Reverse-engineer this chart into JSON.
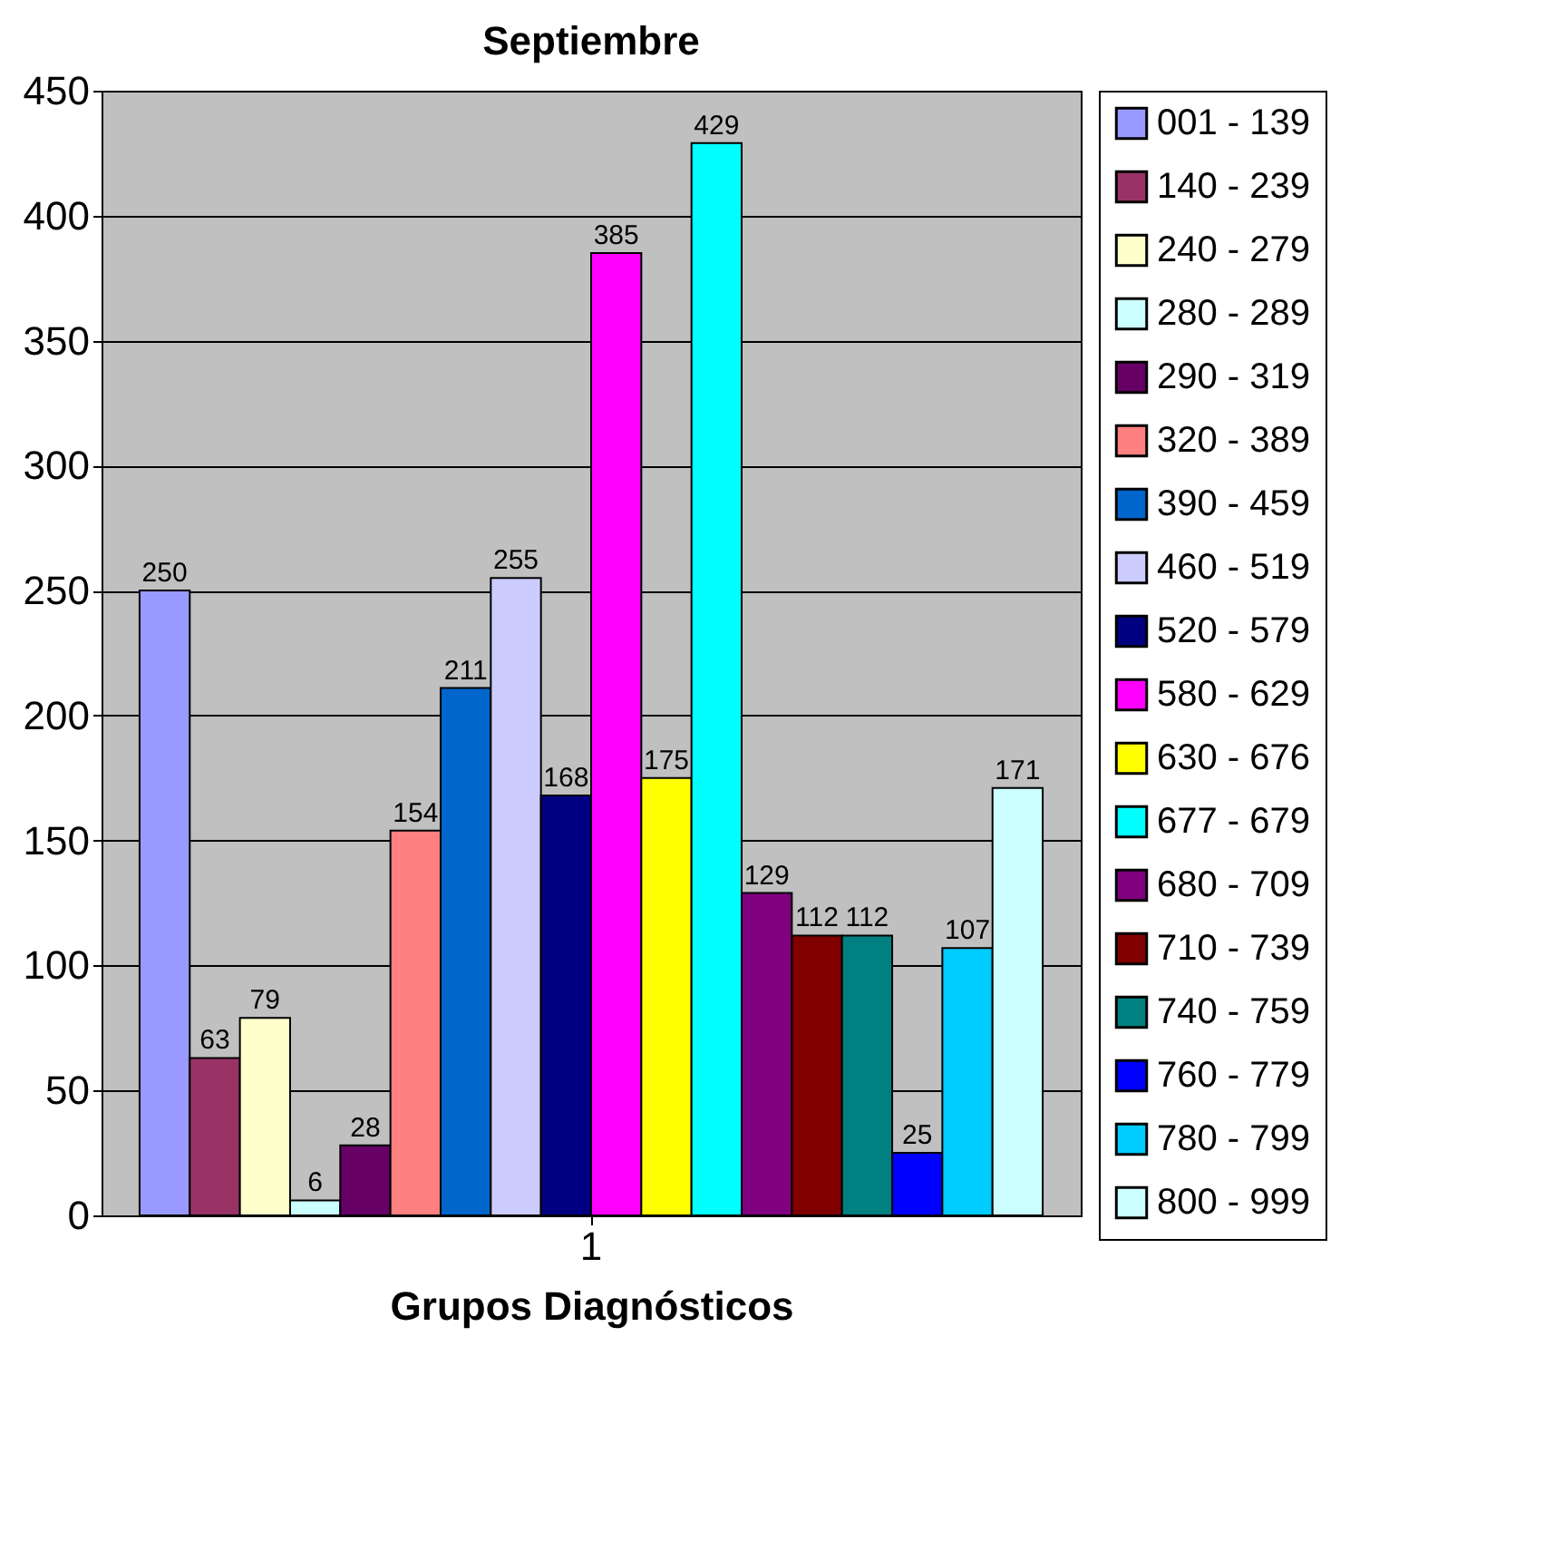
{
  "chart_data": {
    "type": "bar",
    "title": "Septiembre",
    "xlabel": "Grupos Diagnósticos",
    "categories": [
      "1"
    ],
    "series": [
      {
        "name": "001 - 139",
        "color": "#9999ff",
        "values": [
          250
        ]
      },
      {
        "name": "140 - 239",
        "color": "#993366",
        "values": [
          63
        ]
      },
      {
        "name": "240 - 279",
        "color": "#ffffcc",
        "values": [
          79
        ]
      },
      {
        "name": "280 - 289",
        "color": "#ccffff",
        "values": [
          6
        ]
      },
      {
        "name": "290 - 319",
        "color": "#660066",
        "values": [
          28
        ]
      },
      {
        "name": "320 - 389",
        "color": "#ff8080",
        "values": [
          154
        ]
      },
      {
        "name": "390 - 459",
        "color": "#0066cc",
        "values": [
          211
        ]
      },
      {
        "name": "460 - 519",
        "color": "#ccccff",
        "values": [
          255
        ]
      },
      {
        "name": "520 - 579",
        "color": "#000080",
        "values": [
          168
        ]
      },
      {
        "name": "580 - 629",
        "color": "#ff00ff",
        "values": [
          385
        ]
      },
      {
        "name": "630 - 676",
        "color": "#ffff00",
        "values": [
          175
        ]
      },
      {
        "name": "677 - 679",
        "color": "#00ffff",
        "values": [
          429
        ]
      },
      {
        "name": "680 - 709",
        "color": "#800080",
        "values": [
          129
        ]
      },
      {
        "name": "710 - 739",
        "color": "#800000",
        "values": [
          112
        ]
      },
      {
        "name": "740 - 759",
        "color": "#008080",
        "values": [
          112
        ]
      },
      {
        "name": "760 - 779",
        "color": "#0000ff",
        "values": [
          25
        ]
      },
      {
        "name": "780 - 799",
        "color": "#00ccff",
        "values": [
          107
        ]
      },
      {
        "name": "800 - 999",
        "color": "#ccffff",
        "values": [
          171
        ]
      }
    ],
    "ylim": [
      0,
      450
    ],
    "yticks": [
      0,
      50,
      100,
      150,
      200,
      250,
      300,
      350,
      400,
      450
    ],
    "grid": "y",
    "legend": "right",
    "data_labels": true
  }
}
